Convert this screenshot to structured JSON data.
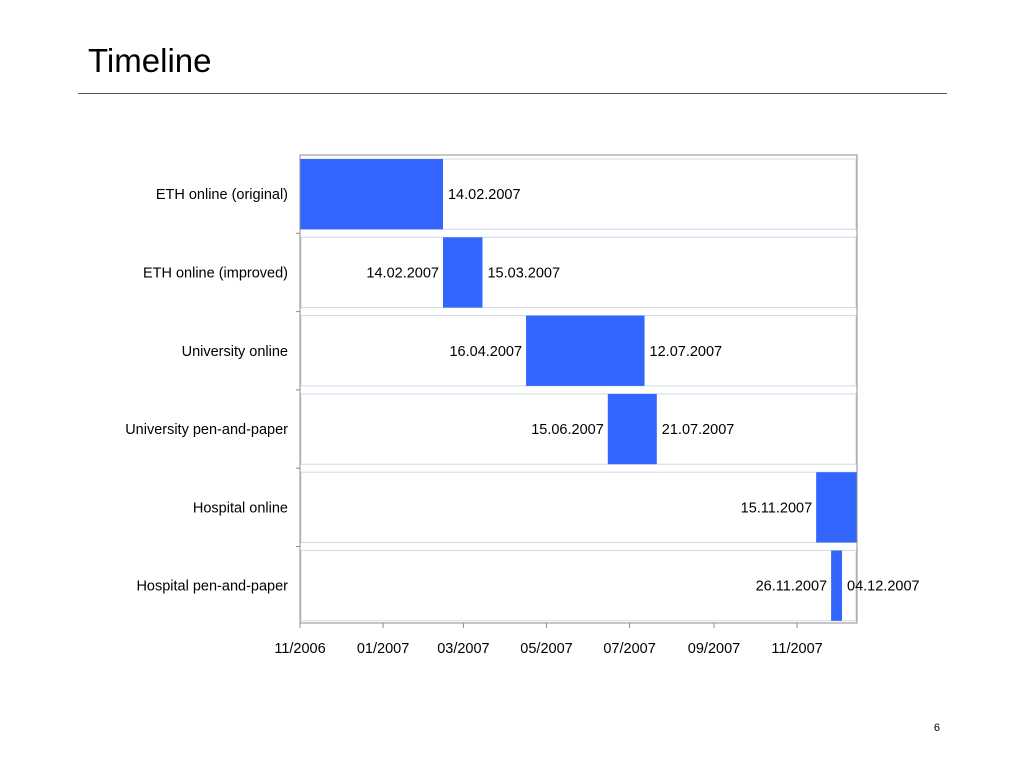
{
  "slide": {
    "title": "Timeline",
    "page_number": "6"
  },
  "colors": {
    "bar": "#3366ff",
    "frame": "#8c8c8c",
    "band": "#cfd8e6",
    "text": "#000000"
  },
  "chart_data": {
    "type": "bar",
    "orientation": "horizontal-gantt",
    "title": "",
    "xlabel": "",
    "ylabel": "",
    "x_axis": {
      "type": "date",
      "range": [
        "2006-11-01",
        "2007-12-15"
      ],
      "tick_labels": [
        "11/2006",
        "01/2007",
        "03/2007",
        "05/2007",
        "07/2007",
        "09/2007",
        "11/2007"
      ],
      "tick_dates": [
        "2006-11-01",
        "2007-01-01",
        "2007-03-01",
        "2007-05-01",
        "2007-07-01",
        "2007-09-01",
        "2007-11-01"
      ]
    },
    "grid": false,
    "legend": "none",
    "tasks": [
      {
        "name": "ETH online (original)",
        "start": "2006-11-01",
        "end": "2007-02-14",
        "start_label": "",
        "end_label": "14.02.2007"
      },
      {
        "name": "ETH online (improved)",
        "start": "2007-02-14",
        "end": "2007-03-15",
        "start_label": "14.02.2007",
        "end_label": "15.03.2007"
      },
      {
        "name": "University online",
        "start": "2007-04-16",
        "end": "2007-07-12",
        "start_label": "16.04.2007",
        "end_label": "12.07.2007"
      },
      {
        "name": "University pen-and-paper",
        "start": "2007-06-15",
        "end": "2007-07-21",
        "start_label": "15.06.2007",
        "end_label": "21.07.2007"
      },
      {
        "name": "Hospital online",
        "start": "2007-11-15",
        "end": "2007-12-15",
        "start_label": "15.11.2007",
        "end_label": ""
      },
      {
        "name": "Hospital pen-and-paper",
        "start": "2007-11-26",
        "end": "2007-12-04",
        "start_label": "26.11.2007",
        "end_label": "04.12.2007"
      }
    ]
  }
}
